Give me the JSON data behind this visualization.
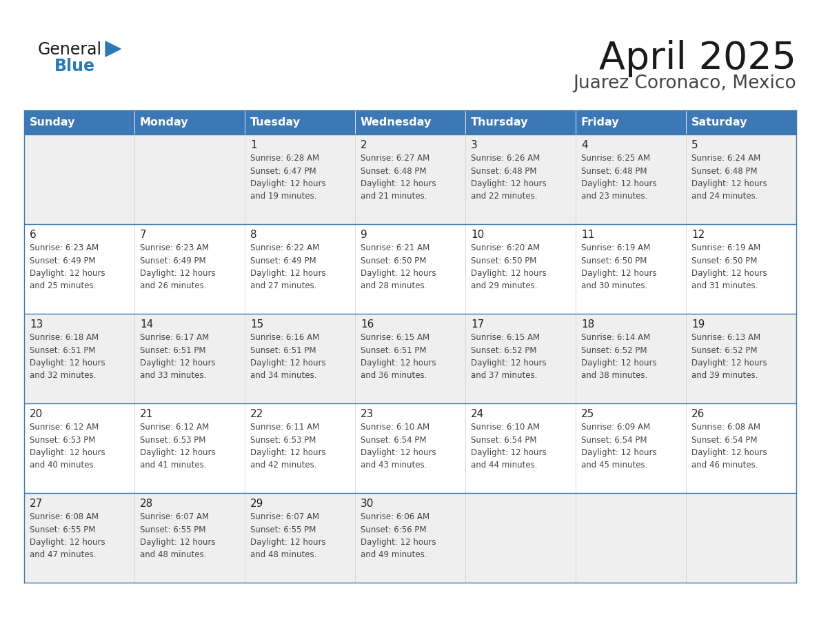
{
  "title": "April 2025",
  "subtitle": "Juarez Coronaco, Mexico",
  "header_bg": "#3b78b5",
  "header_text": "#ffffff",
  "days_of_week": [
    "Sunday",
    "Monday",
    "Tuesday",
    "Wednesday",
    "Thursday",
    "Friday",
    "Saturday"
  ],
  "row_bg_even": "#efefef",
  "row_bg_odd": "#ffffff",
  "cell_text_color": "#444444",
  "day_num_color": "#222222",
  "title_color": "#1a1a1a",
  "subtitle_color": "#444444",
  "general_color": "#1a1a1a",
  "blue_color": "#2a7ab8",
  "border_color": "#3b78b5",
  "logo_general_color": "#1a1a1a",
  "logo_blue_color": "#2a7ab8",
  "logo_triangle_color": "#2a7ab8",
  "calendar": [
    [
      {
        "day": "",
        "text": ""
      },
      {
        "day": "",
        "text": ""
      },
      {
        "day": "1",
        "text": "Sunrise: 6:28 AM\nSunset: 6:47 PM\nDaylight: 12 hours\nand 19 minutes."
      },
      {
        "day": "2",
        "text": "Sunrise: 6:27 AM\nSunset: 6:48 PM\nDaylight: 12 hours\nand 21 minutes."
      },
      {
        "day": "3",
        "text": "Sunrise: 6:26 AM\nSunset: 6:48 PM\nDaylight: 12 hours\nand 22 minutes."
      },
      {
        "day": "4",
        "text": "Sunrise: 6:25 AM\nSunset: 6:48 PM\nDaylight: 12 hours\nand 23 minutes."
      },
      {
        "day": "5",
        "text": "Sunrise: 6:24 AM\nSunset: 6:48 PM\nDaylight: 12 hours\nand 24 minutes."
      }
    ],
    [
      {
        "day": "6",
        "text": "Sunrise: 6:23 AM\nSunset: 6:49 PM\nDaylight: 12 hours\nand 25 minutes."
      },
      {
        "day": "7",
        "text": "Sunrise: 6:23 AM\nSunset: 6:49 PM\nDaylight: 12 hours\nand 26 minutes."
      },
      {
        "day": "8",
        "text": "Sunrise: 6:22 AM\nSunset: 6:49 PM\nDaylight: 12 hours\nand 27 minutes."
      },
      {
        "day": "9",
        "text": "Sunrise: 6:21 AM\nSunset: 6:50 PM\nDaylight: 12 hours\nand 28 minutes."
      },
      {
        "day": "10",
        "text": "Sunrise: 6:20 AM\nSunset: 6:50 PM\nDaylight: 12 hours\nand 29 minutes."
      },
      {
        "day": "11",
        "text": "Sunrise: 6:19 AM\nSunset: 6:50 PM\nDaylight: 12 hours\nand 30 minutes."
      },
      {
        "day": "12",
        "text": "Sunrise: 6:19 AM\nSunset: 6:50 PM\nDaylight: 12 hours\nand 31 minutes."
      }
    ],
    [
      {
        "day": "13",
        "text": "Sunrise: 6:18 AM\nSunset: 6:51 PM\nDaylight: 12 hours\nand 32 minutes."
      },
      {
        "day": "14",
        "text": "Sunrise: 6:17 AM\nSunset: 6:51 PM\nDaylight: 12 hours\nand 33 minutes."
      },
      {
        "day": "15",
        "text": "Sunrise: 6:16 AM\nSunset: 6:51 PM\nDaylight: 12 hours\nand 34 minutes."
      },
      {
        "day": "16",
        "text": "Sunrise: 6:15 AM\nSunset: 6:51 PM\nDaylight: 12 hours\nand 36 minutes."
      },
      {
        "day": "17",
        "text": "Sunrise: 6:15 AM\nSunset: 6:52 PM\nDaylight: 12 hours\nand 37 minutes."
      },
      {
        "day": "18",
        "text": "Sunrise: 6:14 AM\nSunset: 6:52 PM\nDaylight: 12 hours\nand 38 minutes."
      },
      {
        "day": "19",
        "text": "Sunrise: 6:13 AM\nSunset: 6:52 PM\nDaylight: 12 hours\nand 39 minutes."
      }
    ],
    [
      {
        "day": "20",
        "text": "Sunrise: 6:12 AM\nSunset: 6:53 PM\nDaylight: 12 hours\nand 40 minutes."
      },
      {
        "day": "21",
        "text": "Sunrise: 6:12 AM\nSunset: 6:53 PM\nDaylight: 12 hours\nand 41 minutes."
      },
      {
        "day": "22",
        "text": "Sunrise: 6:11 AM\nSunset: 6:53 PM\nDaylight: 12 hours\nand 42 minutes."
      },
      {
        "day": "23",
        "text": "Sunrise: 6:10 AM\nSunset: 6:54 PM\nDaylight: 12 hours\nand 43 minutes."
      },
      {
        "day": "24",
        "text": "Sunrise: 6:10 AM\nSunset: 6:54 PM\nDaylight: 12 hours\nand 44 minutes."
      },
      {
        "day": "25",
        "text": "Sunrise: 6:09 AM\nSunset: 6:54 PM\nDaylight: 12 hours\nand 45 minutes."
      },
      {
        "day": "26",
        "text": "Sunrise: 6:08 AM\nSunset: 6:54 PM\nDaylight: 12 hours\nand 46 minutes."
      }
    ],
    [
      {
        "day": "27",
        "text": "Sunrise: 6:08 AM\nSunset: 6:55 PM\nDaylight: 12 hours\nand 47 minutes."
      },
      {
        "day": "28",
        "text": "Sunrise: 6:07 AM\nSunset: 6:55 PM\nDaylight: 12 hours\nand 48 minutes."
      },
      {
        "day": "29",
        "text": "Sunrise: 6:07 AM\nSunset: 6:55 PM\nDaylight: 12 hours\nand 48 minutes."
      },
      {
        "day": "30",
        "text": "Sunrise: 6:06 AM\nSunset: 6:56 PM\nDaylight: 12 hours\nand 49 minutes."
      },
      {
        "day": "",
        "text": ""
      },
      {
        "day": "",
        "text": ""
      },
      {
        "day": "",
        "text": ""
      }
    ]
  ]
}
